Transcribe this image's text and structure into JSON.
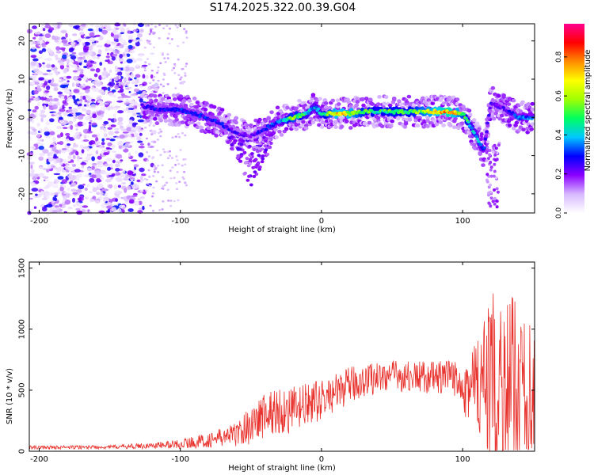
{
  "title": "S174.2025.322.00.39.G04",
  "chart_data": [
    {
      "type": "heatmap",
      "title": "S174.2025.322.00.39.G04",
      "xlabel": "Height of straight line (km)",
      "ylabel": "Frequency (Hz)",
      "xlim": [
        -207,
        151
      ],
      "ylim": [
        -25,
        24.5
      ],
      "xticks": [
        -200,
        -100,
        0,
        100
      ],
      "yticks": [
        -20,
        -10,
        0,
        10,
        20
      ],
      "colorbar": {
        "label": "Normalized spectral amplitude",
        "range": [
          0,
          0.97
        ],
        "ticks": [
          0.0,
          0.2,
          0.4,
          0.6,
          0.8
        ],
        "stops": [
          "#ffffff",
          "#d8b8ff",
          "#8a00ff",
          "#0000ff",
          "#00c8ff",
          "#00ff60",
          "#a0ff00",
          "#ffff00",
          "#ff8c00",
          "#ff0000",
          "#ff0090"
        ]
      },
      "ridge": [
        {
          "x": -127,
          "f": 3,
          "amp": 0.25
        },
        {
          "x": -115,
          "f": 2,
          "amp": 0.3
        },
        {
          "x": -100,
          "f": 2,
          "amp": 0.3
        },
        {
          "x": -90,
          "f": 1,
          "amp": 0.3
        },
        {
          "x": -75,
          "f": -1,
          "amp": 0.3
        },
        {
          "x": -60,
          "f": -4,
          "amp": 0.25
        },
        {
          "x": -50,
          "f": -5,
          "amp": 0.2
        },
        {
          "x": -40,
          "f": -3,
          "amp": 0.3
        },
        {
          "x": -30,
          "f": -1,
          "amp": 0.35
        },
        {
          "x": -20,
          "f": 0,
          "amp": 0.6
        },
        {
          "x": -10,
          "f": 1,
          "amp": 0.45
        },
        {
          "x": -5,
          "f": 3,
          "amp": 0.4
        },
        {
          "x": 0,
          "f": 1,
          "amp": 0.45
        },
        {
          "x": 10,
          "f": 1,
          "amp": 0.7
        },
        {
          "x": 20,
          "f": 1,
          "amp": 0.7
        },
        {
          "x": 30,
          "f": 1.5,
          "amp": 0.55
        },
        {
          "x": 40,
          "f": 1.5,
          "amp": 0.5
        },
        {
          "x": 50,
          "f": 1.5,
          "amp": 0.55
        },
        {
          "x": 60,
          "f": 1.5,
          "amp": 0.5
        },
        {
          "x": 70,
          "f": 1.5,
          "amp": 0.6
        },
        {
          "x": 80,
          "f": 1.5,
          "amp": 0.7
        },
        {
          "x": 90,
          "f": 1.5,
          "amp": 0.8
        },
        {
          "x": 100,
          "f": 1,
          "amp": 0.6
        },
        {
          "x": 105,
          "f": -2,
          "amp": 0.45
        },
        {
          "x": 110,
          "f": -5,
          "amp": 0.4
        },
        {
          "x": 115,
          "f": -9,
          "amp": 0.35
        },
        {
          "x": 120,
          "f": 4,
          "amp": 0.25
        },
        {
          "x": 130,
          "f": 2,
          "amp": 0.25
        },
        {
          "x": 140,
          "f": 0,
          "amp": 0.35
        },
        {
          "x": 150,
          "f": 0,
          "amp": 0.35
        }
      ]
    },
    {
      "type": "line",
      "xlabel": "Height of straight line (km)",
      "ylabel": "SNR (10 * v/v)",
      "xlim": [
        -207,
        151
      ],
      "ylim": [
        0,
        1550
      ],
      "xticks": [
        -200,
        -100,
        0,
        100
      ],
      "yticks": [
        0,
        500,
        1000,
        1500
      ],
      "line_color": "#e8312c",
      "envelope": [
        {
          "x": -207,
          "mean": 30,
          "spread": 15
        },
        {
          "x": -150,
          "mean": 35,
          "spread": 15
        },
        {
          "x": -120,
          "mean": 45,
          "spread": 25
        },
        {
          "x": -100,
          "mean": 60,
          "spread": 40
        },
        {
          "x": -80,
          "mean": 90,
          "spread": 60
        },
        {
          "x": -60,
          "mean": 140,
          "spread": 100
        },
        {
          "x": -50,
          "mean": 220,
          "spread": 160
        },
        {
          "x": -40,
          "mean": 300,
          "spread": 200
        },
        {
          "x": -30,
          "mean": 330,
          "spread": 200
        },
        {
          "x": -20,
          "mean": 330,
          "spread": 200
        },
        {
          "x": -10,
          "mean": 380,
          "spread": 180
        },
        {
          "x": 0,
          "mean": 420,
          "spread": 160
        },
        {
          "x": 10,
          "mean": 480,
          "spread": 150
        },
        {
          "x": 20,
          "mean": 540,
          "spread": 150
        },
        {
          "x": 30,
          "mean": 580,
          "spread": 140
        },
        {
          "x": 40,
          "mean": 610,
          "spread": 130
        },
        {
          "x": 50,
          "mean": 620,
          "spread": 130
        },
        {
          "x": 60,
          "mean": 610,
          "spread": 130
        },
        {
          "x": 70,
          "mean": 610,
          "spread": 130
        },
        {
          "x": 80,
          "mean": 600,
          "spread": 140
        },
        {
          "x": 90,
          "mean": 600,
          "spread": 150
        },
        {
          "x": 100,
          "mean": 580,
          "spread": 180
        },
        {
          "x": 105,
          "mean": 520,
          "spread": 450
        },
        {
          "x": 115,
          "mean": 480,
          "spread": 600
        },
        {
          "x": 125,
          "mean": 550,
          "spread": 850
        },
        {
          "x": 135,
          "mean": 520,
          "spread": 750
        },
        {
          "x": 145,
          "mean": 500,
          "spread": 700
        },
        {
          "x": 151,
          "mean": 480,
          "spread": 650
        }
      ]
    }
  ]
}
